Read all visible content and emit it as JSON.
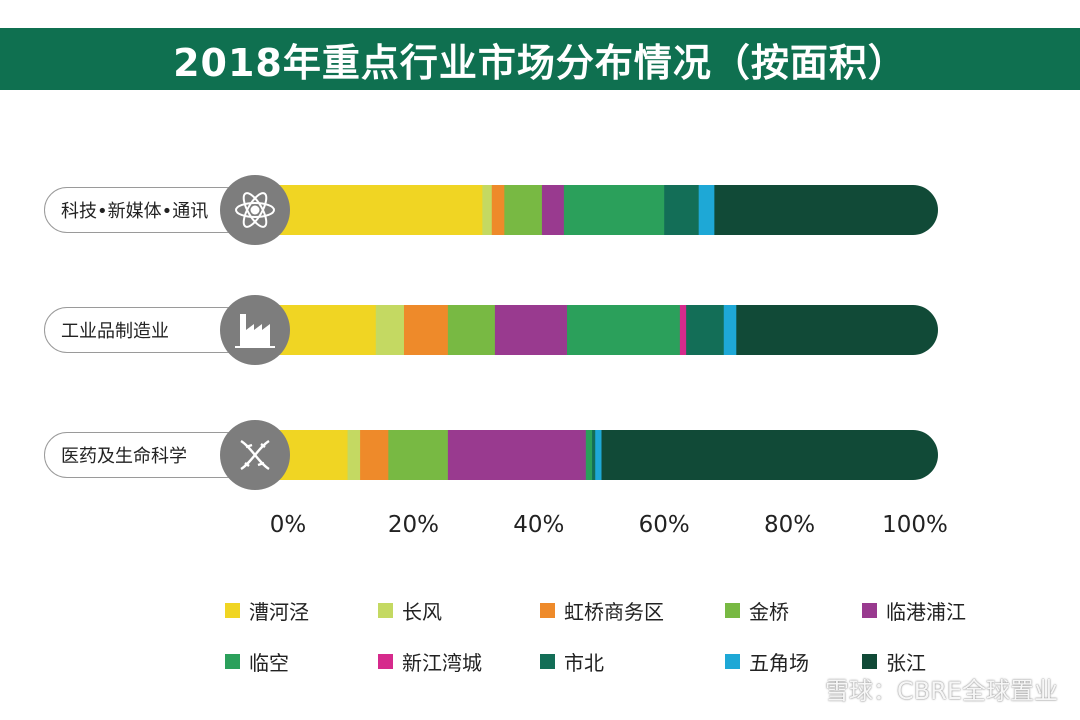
{
  "chart_data": {
    "type": "bar",
    "orientation": "horizontal",
    "stacked": true,
    "title": "2018年重点行业市场分布情况（按面积）",
    "categories": [
      "科技•新媒体•通讯",
      "工业品制造业",
      "医药及生命科学"
    ],
    "category_icons": [
      "atom-icon",
      "factory-icon",
      "dna-icon"
    ],
    "xlim": [
      0,
      100
    ],
    "x_ticks": [
      "0%",
      "20%",
      "40%",
      "60%",
      "80%",
      "100%"
    ],
    "legend_position": "bottom",
    "series": [
      {
        "name": "漕河泾",
        "color": "#f0d523",
        "values": [
          31.0,
          14.0,
          9.5
        ]
      },
      {
        "name": "长风",
        "color": "#c4d962",
        "values": [
          1.5,
          4.5,
          2.0
        ]
      },
      {
        "name": "虹桥商务区",
        "color": "#ee8a2a",
        "values": [
          2.0,
          7.0,
          4.5
        ]
      },
      {
        "name": "金桥",
        "color": "#78b943",
        "values": [
          6.0,
          7.5,
          9.5
        ]
      },
      {
        "name": "临港浦江",
        "color": "#993a8f",
        "values": [
          3.5,
          11.5,
          22.0
        ]
      },
      {
        "name": "临空",
        "color": "#2ba05b",
        "values": [
          16.0,
          18.0,
          1.0
        ]
      },
      {
        "name": "新江湾城",
        "color": "#d62a8c",
        "values": [
          0.0,
          1.0,
          0.0
        ]
      },
      {
        "name": "市北",
        "color": "#136e57",
        "values": [
          5.5,
          6.0,
          0.5
        ]
      },
      {
        "name": "五角场",
        "color": "#1ea8d6",
        "values": [
          2.5,
          2.0,
          1.0
        ]
      },
      {
        "name": "张江",
        "color": "#114a37",
        "values": [
          32.0,
          28.5,
          50.0
        ]
      }
    ]
  },
  "watermark": {
    "text": "雪球：CBRE全球置业"
  }
}
